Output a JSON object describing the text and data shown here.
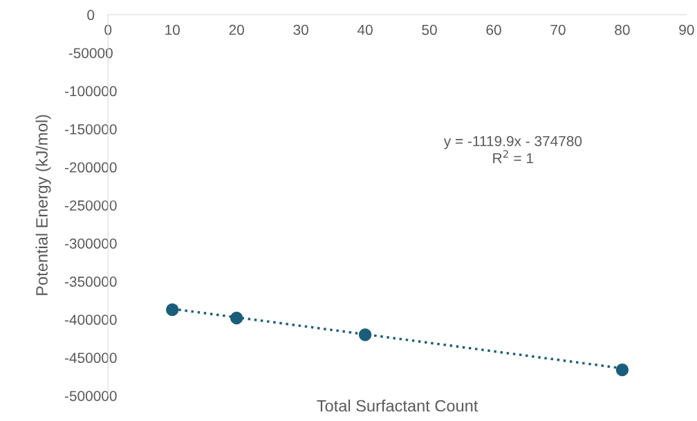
{
  "chart_data": {
    "type": "scatter",
    "xlabel": "Total Surfactant Count",
    "ylabel": "Potential Energy (kJ/mol)",
    "series": [
      {
        "color": "#1b5e7b",
        "marker": "circle",
        "x": [
          10,
          20,
          40,
          80
        ],
        "values": [
          -387000,
          -398000,
          -420000,
          -466000
        ]
      },
      {
        "type": "line",
        "color": "#1b5e7b",
        "line_style": "dotted",
        "x": [
          10,
          80
        ],
        "values": [
          -386000,
          -464000
        ]
      }
    ],
    "annotations": [
      "y = -1119.9x - 374780",
      "R$^{2}$ = 1"
    ],
    "xlim": [
      0,
      90
    ],
    "xticks": [
      0,
      10,
      20,
      30,
      40,
      50,
      60,
      70,
      80,
      90
    ],
    "ylim": [
      -500000,
      0
    ],
    "yticks": [
      -500000,
      -450000,
      -400000,
      -350000,
      -300000,
      -250000,
      -200000,
      -150000,
      -100000,
      -50000,
      0
    ],
    "grid": false,
    "legend": false
  }
}
